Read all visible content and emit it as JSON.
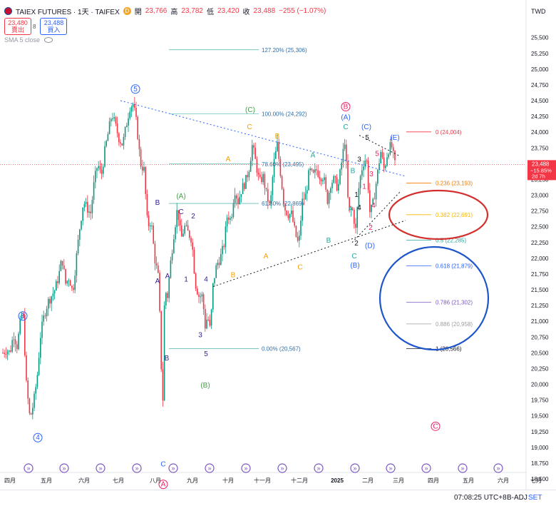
{
  "header": {
    "symbol": "TAIEX FUTURES · 1天 · TAIFEX",
    "open_label": "開",
    "open": "23,766",
    "high_label": "高",
    "high": "23,782",
    "low_label": "低",
    "low": "23,420",
    "close_label": "收",
    "close": "23,488",
    "change": "−255 (−1.07%)",
    "sell_price": "23,480",
    "sell_label": "賣出",
    "spread": "8",
    "buy_price": "23,488",
    "buy_label": "買入",
    "sma": "SMA 5 close"
  },
  "currency": "TWD",
  "colors": {
    "up": "#089981",
    "down": "#f23645",
    "fib": "#26a69a",
    "axis_text": "#131722"
  },
  "status_bar": {
    "time": "07:08:25 UTC+8",
    "adj": "B-ADJ",
    "set": "SET"
  },
  "chart_data": {
    "type": "candlestick",
    "ylim": [
      18500,
      25800
    ],
    "y_ticks": [
      "25,500",
      "25,250",
      "25,000",
      "24,750",
      "24,500",
      "24,250",
      "24,000",
      "23,750",
      "23,500",
      "23,250",
      "23,000",
      "22,750",
      "22,500",
      "22,250",
      "22,000",
      "21,750",
      "21,500",
      "21,250",
      "21,000",
      "20,750",
      "20,500",
      "20,250",
      "20,000",
      "19,750",
      "19,500",
      "19,250",
      "19,000",
      "18,750",
      "18,500"
    ],
    "x_ticks": [
      "四月",
      "五月",
      "六月",
      "七月",
      "八月",
      "九月",
      "十月",
      "十一月",
      "十二月",
      "2025",
      "二月",
      "三月",
      "四月",
      "五月",
      "六月",
      "七月"
    ],
    "price_label": {
      "value": "23,488",
      "pct": "−15.85%",
      "time_left": "2d 7h"
    },
    "waypoints": [
      [
        0,
        20500
      ],
      [
        5,
        20550
      ],
      [
        10,
        20500
      ],
      [
        15,
        20800
      ],
      [
        20,
        20600
      ],
      [
        24,
        20950
      ],
      [
        28,
        21200
      ],
      [
        33,
        20000
      ],
      [
        38,
        19450
      ],
      [
        43,
        19700
      ],
      [
        48,
        20100
      ],
      [
        53,
        20800
      ],
      [
        58,
        21100
      ],
      [
        63,
        21300
      ],
      [
        68,
        21400
      ],
      [
        73,
        21500
      ],
      [
        78,
        21700
      ],
      [
        83,
        22000
      ],
      [
        88,
        21600
      ],
      [
        93,
        21700
      ],
      [
        98,
        21450
      ],
      [
        103,
        22000
      ],
      [
        108,
        22500
      ],
      [
        113,
        22900
      ],
      [
        118,
        22800
      ],
      [
        123,
        22700
      ],
      [
        128,
        23200
      ],
      [
        133,
        23500
      ],
      [
        138,
        23300
      ],
      [
        143,
        23700
      ],
      [
        148,
        24000
      ],
      [
        153,
        24300
      ],
      [
        158,
        24100
      ],
      [
        163,
        23900
      ],
      [
        168,
        23800
      ],
      [
        173,
        24100
      ],
      [
        178,
        24400
      ],
      [
        183,
        24450
      ],
      [
        188,
        24100
      ],
      [
        193,
        23500
      ],
      [
        198,
        23400
      ],
      [
        203,
        22500
      ],
      [
        208,
        22600
      ],
      [
        213,
        22000
      ],
      [
        218,
        21700
      ],
      [
        221,
        20800
      ],
      [
        224,
        19500
      ],
      [
        227,
        21500
      ],
      [
        231,
        21400
      ],
      [
        235,
        21900
      ],
      [
        240,
        22400
      ],
      [
        245,
        22800
      ],
      [
        250,
        22300
      ],
      [
        255,
        22500
      ],
      [
        260,
        22400
      ],
      [
        265,
        22300
      ],
      [
        270,
        21600
      ],
      [
        275,
        21400
      ],
      [
        280,
        21400
      ],
      [
        284,
        20900
      ],
      [
        287,
        21100
      ],
      [
        291,
        20850
      ],
      [
        295,
        21600
      ],
      [
        300,
        21900
      ],
      [
        305,
        22000
      ],
      [
        310,
        22200
      ],
      [
        315,
        22700
      ],
      [
        320,
        22600
      ],
      [
        325,
        23100
      ],
      [
        330,
        22900
      ],
      [
        335,
        23100
      ],
      [
        340,
        23200
      ],
      [
        345,
        23400
      ],
      [
        350,
        23800
      ],
      [
        355,
        23500
      ],
      [
        360,
        23200
      ],
      [
        365,
        23300
      ],
      [
        370,
        23000
      ],
      [
        375,
        22800
      ],
      [
        380,
        23500
      ],
      [
        385,
        23800
      ],
      [
        390,
        23300
      ],
      [
        395,
        22800
      ],
      [
        400,
        22700
      ],
      [
        405,
        22700
      ],
      [
        410,
        22400
      ],
      [
        415,
        22200
      ],
      [
        420,
        22900
      ],
      [
        425,
        23000
      ],
      [
        430,
        23400
      ],
      [
        435,
        23300
      ],
      [
        440,
        23400
      ],
      [
        445,
        23300
      ],
      [
        450,
        23300
      ],
      [
        455,
        22900
      ],
      [
        460,
        23200
      ],
      [
        465,
        23250
      ],
      [
        470,
        23100
      ],
      [
        475,
        23500
      ],
      [
        480,
        23900
      ],
      [
        485,
        22700
      ],
      [
        490,
        22800
      ],
      [
        495,
        22450
      ],
      [
        500,
        23200
      ],
      [
        505,
        23500
      ],
      [
        510,
        23600
      ],
      [
        515,
        22700
      ],
      [
        520,
        22900
      ],
      [
        525,
        23300
      ],
      [
        530,
        23700
      ],
      [
        535,
        23400
      ],
      [
        540,
        23700
      ],
      [
        545,
        23800
      ],
      [
        550,
        23488
      ]
    ],
    "fib_levels": [
      {
        "label": "127.20% (25,306)",
        "value": 25306,
        "color": "#26a69a"
      },
      {
        "label": "100.00% (24,292)",
        "value": 24292,
        "color": "#26a69a"
      },
      {
        "label": "78.60% (23,495)",
        "value": 23495,
        "color": "#26a69a"
      },
      {
        "label": "61.80% (22,869)",
        "value": 22869,
        "color": "#26a69a"
      },
      {
        "label": "0.00% (20,567)",
        "value": 20567,
        "color": "#26a69a"
      }
    ],
    "fib_levels_right": [
      {
        "label": "0 (24,004)",
        "value": 24004,
        "color": "#f23645"
      },
      {
        "label": "0.236 (23,193)",
        "value": 23193,
        "color": "#f57c00"
      },
      {
        "label": "0.382 (22,691)",
        "value": 22691,
        "color": "#f5b800"
      },
      {
        "label": "0.5 (22,285)",
        "value": 22285,
        "color": "#26a69a"
      },
      {
        "label": "0.618 (21,879)",
        "value": 21879,
        "color": "#2962ff"
      },
      {
        "label": "0.786 (21,302)",
        "value": 21302,
        "color": "#7e57c2"
      },
      {
        "label": "0.886 (20,958)",
        "value": 20958,
        "color": "#9e9e9e"
      },
      {
        "label": "1 (20,566)",
        "value": 20566,
        "color": "#131722"
      }
    ],
    "wave_labels": [
      {
        "text": "3",
        "x": 28,
        "y": 21050,
        "color": "#2962ff",
        "circled": true
      },
      {
        "text": "4",
        "x": 49,
        "y": 19120,
        "color": "#2962ff",
        "circled": true
      },
      {
        "text": "5",
        "x": 186,
        "y": 24650,
        "color": "#2962ff",
        "circled": true
      },
      {
        "text": "A",
        "x": 225,
        "y": 18380,
        "color": "#e91e63",
        "circled": true
      },
      {
        "text": "C",
        "x": 607,
        "y": 19300,
        "color": "#e91e63",
        "circled": true
      },
      {
        "text": "B",
        "x": 481,
        "y": 24370,
        "color": "#e91e63",
        "circled": true
      },
      {
        "text": "B",
        "x": 217,
        "y": 22850,
        "color": "#311b92"
      },
      {
        "text": "A",
        "x": 217,
        "y": 21600,
        "color": "#311b92"
      },
      {
        "text": "B",
        "x": 230,
        "y": 20380,
        "color": "#311b92"
      },
      {
        "text": "C",
        "x": 225,
        "y": 18700,
        "color": "#2962ff"
      },
      {
        "text": "A",
        "x": 231,
        "y": 21680,
        "color": "#311b92"
      },
      {
        "text": "C",
        "x": 250,
        "y": 22700,
        "color": "#311b92"
      },
      {
        "text": "2",
        "x": 267,
        "y": 22630,
        "color": "#311b92"
      },
      {
        "text": "1",
        "x": 257,
        "y": 21630,
        "color": "#311b92"
      },
      {
        "text": "3",
        "x": 277,
        "y": 20750,
        "color": "#311b92"
      },
      {
        "text": "4",
        "x": 285,
        "y": 21630,
        "color": "#311b92"
      },
      {
        "text": "5",
        "x": 285,
        "y": 20450,
        "color": "#311b92"
      },
      {
        "text": "(A)",
        "x": 250,
        "y": 22950,
        "color": "#43a047"
      },
      {
        "text": "(B)",
        "x": 284,
        "y": 19950,
        "color": "#43a047"
      },
      {
        "text": "(C)",
        "x": 347,
        "y": 24320,
        "color": "#43a047"
      },
      {
        "text": "C",
        "x": 346,
        "y": 24050,
        "color": "#f5a000"
      },
      {
        "text": "B",
        "x": 385,
        "y": 23900,
        "color": "#f5a000"
      },
      {
        "text": "A",
        "x": 316,
        "y": 23540,
        "color": "#f5a000"
      },
      {
        "text": "B",
        "x": 323,
        "y": 21700,
        "color": "#f5a000"
      },
      {
        "text": "A",
        "x": 369,
        "y": 22000,
        "color": "#f5a000"
      },
      {
        "text": "C",
        "x": 417,
        "y": 21820,
        "color": "#f5a000"
      },
      {
        "text": "A",
        "x": 435,
        "y": 23600,
        "color": "#26a69a"
      },
      {
        "text": "B",
        "x": 457,
        "y": 22250,
        "color": "#26a69a"
      },
      {
        "text": "(A)",
        "x": 481,
        "y": 24200,
        "color": "#2962ff"
      },
      {
        "text": "C",
        "x": 481,
        "y": 24050,
        "color": "#26a69a"
      },
      {
        "text": "B",
        "x": 491,
        "y": 23350,
        "color": "#26a69a"
      },
      {
        "text": "A",
        "x": 488,
        "y": 22750,
        "color": "#26a69a"
      },
      {
        "text": "C",
        "x": 493,
        "y": 22000,
        "color": "#26a69a"
      },
      {
        "text": "(B)",
        "x": 494,
        "y": 21850,
        "color": "#2962ff"
      },
      {
        "text": "(C)",
        "x": 510,
        "y": 24050,
        "color": "#2962ff"
      },
      {
        "text": "(D)",
        "x": 515,
        "y": 22160,
        "color": "#2962ff"
      },
      {
        "text": "(E)",
        "x": 550,
        "y": 23880,
        "color": "#2962ff"
      },
      {
        "text": "5",
        "x": 511,
        "y": 23880,
        "color": "#131722"
      },
      {
        "text": "3",
        "x": 500,
        "y": 23530,
        "color": "#131722"
      },
      {
        "text": "1",
        "x": 496,
        "y": 22970,
        "color": "#131722"
      },
      {
        "text": "4",
        "x": 500,
        "y": 22770,
        "color": "#131722"
      },
      {
        "text": "2",
        "x": 496,
        "y": 22200,
        "color": "#131722"
      },
      {
        "text": "5",
        "x": 525,
        "y": 23620,
        "color": "#e91e63"
      },
      {
        "text": "3",
        "x": 517,
        "y": 23300,
        "color": "#e91e63"
      },
      {
        "text": "4",
        "x": 520,
        "y": 22800,
        "color": "#e91e63"
      },
      {
        "text": "2",
        "x": 516,
        "y": 22450,
        "color": "#e91e63"
      },
      {
        "text": "1",
        "x": 507,
        "y": 23100,
        "color": "#e91e63"
      }
    ],
    "trendlines": [
      {
        "points": [
          [
            165,
            24500
          ],
          [
            565,
            23300
          ]
        ],
        "color": "#2962ff",
        "dash": "2,3"
      },
      {
        "points": [
          [
            295,
            21550
          ],
          [
            565,
            22600
          ]
        ],
        "color": "#131722",
        "dash": "2,3"
      },
      {
        "points": [
          [
            500,
            23950
          ],
          [
            557,
            23620
          ]
        ],
        "color": "#131722",
        "dash": "2,3"
      },
      {
        "points": [
          [
            490,
            22250
          ],
          [
            557,
            23050
          ]
        ],
        "color": "#131722",
        "dash": "2,3"
      }
    ],
    "ellipses": [
      {
        "cx": 615,
        "cy": 301,
        "rx": 69,
        "ry": 34,
        "color": "#d32f2f"
      },
      {
        "cx": 609,
        "cy": 418,
        "rx": 76,
        "ry": 72,
        "color": "#1e56c9"
      }
    ]
  }
}
